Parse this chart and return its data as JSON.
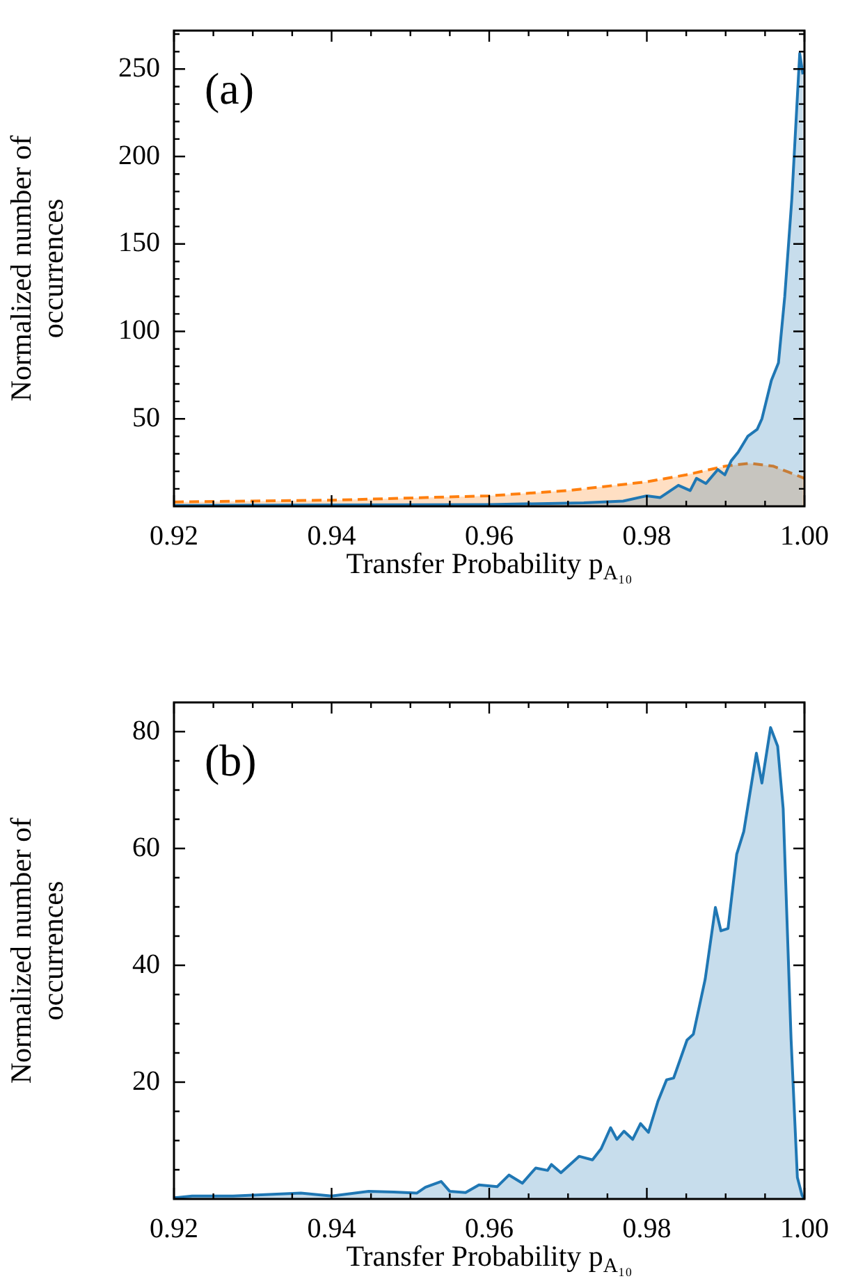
{
  "chart_data": [
    {
      "type": "area",
      "xlabel": "Transfer Probability p$_{A₁₀}$",
      "ylabel": "Normalized number of occurrences",
      "annotations": [
        "(a)"
      ],
      "xlim": [
        0.92,
        1.0
      ],
      "xticks": [
        0.92,
        {
          "value": 0.925,
          "label": null
        },
        {
          "value": 0.93,
          "label": null
        },
        {
          "value": 0.935,
          "label": null
        },
        0.94,
        {
          "value": 0.945,
          "label": null
        },
        {
          "value": 0.95,
          "label": null
        },
        {
          "value": 0.955,
          "label": null
        },
        0.96,
        {
          "value": 0.965,
          "label": null
        },
        {
          "value": 0.97,
          "label": null
        },
        {
          "value": 0.975,
          "label": null
        },
        0.98,
        {
          "value": 0.985,
          "label": null
        },
        {
          "value": 0.99,
          "label": null
        },
        {
          "value": 0.995,
          "label": null
        },
        {
          "value": 1.0,
          "label": "1.00"
        }
      ],
      "ylim": [
        0,
        272
      ],
      "yticks": [
        {
          "value": 10,
          "label": null
        },
        {
          "value": 20,
          "label": null
        },
        {
          "value": 30,
          "label": null
        },
        {
          "value": 40,
          "label": null
        },
        50,
        {
          "value": 60,
          "label": null
        },
        {
          "value": 70,
          "label": null
        },
        {
          "value": 80,
          "label": null
        },
        {
          "value": 90,
          "label": null
        },
        100,
        {
          "value": 110,
          "label": null
        },
        {
          "value": 120,
          "label": null
        },
        {
          "value": 130,
          "label": null
        },
        {
          "value": 140,
          "label": null
        },
        150,
        {
          "value": 160,
          "label": null
        },
        {
          "value": 170,
          "label": null
        },
        {
          "value": 180,
          "label": null
        },
        {
          "value": 190,
          "label": null
        },
        200,
        {
          "value": 210,
          "label": null
        },
        {
          "value": 220,
          "label": null
        },
        {
          "value": 230,
          "label": null
        },
        {
          "value": 240,
          "label": null
        },
        250,
        {
          "value": 260,
          "label": null
        },
        {
          "value": 270,
          "label": null
        }
      ],
      "series": [
        {
          "color": "#1f77b4",
          "x": [
            0.92,
            0.96,
            0.972,
            0.977,
            0.98,
            0.9817,
            0.984,
            0.9855,
            0.9863,
            0.9875,
            0.989,
            0.9899,
            0.9907,
            0.9916,
            0.9928,
            0.994,
            0.9946,
            0.9958,
            0.9967,
            0.9975,
            0.9984,
            0.999,
            0.9994,
            0.9998
          ],
          "values": [
            0.5,
            1,
            2,
            3,
            6,
            5,
            12,
            9,
            16,
            13,
            21,
            18,
            26,
            31,
            40,
            44,
            50,
            72,
            82,
            120,
            176,
            226,
            259,
            247
          ]
        },
        {
          "color": "#ff7f0e",
          "line_style": "dashed",
          "x": [
            0.92,
            0.94,
            0.96,
            0.97,
            0.98,
            0.985,
            0.99,
            0.993,
            0.996,
            0.998,
            1.0
          ],
          "values": [
            2.5,
            3.5,
            6,
            9,
            14,
            18,
            23,
            24.6,
            23,
            19.5,
            16
          ]
        }
      ]
    },
    {
      "type": "area",
      "xlabel": "Transfer Probability p$_{A₁₀}$",
      "ylabel": "Normalized number of occurrences",
      "annotations": [
        "(b)"
      ],
      "xlim": [
        0.92,
        1.0
      ],
      "xticks": [
        0.92,
        {
          "value": 0.925,
          "label": null
        },
        {
          "value": 0.93,
          "label": null
        },
        {
          "value": 0.935,
          "label": null
        },
        0.94,
        {
          "value": 0.945,
          "label": null
        },
        {
          "value": 0.95,
          "label": null
        },
        {
          "value": 0.955,
          "label": null
        },
        0.96,
        {
          "value": 0.965,
          "label": null
        },
        {
          "value": 0.97,
          "label": null
        },
        {
          "value": 0.975,
          "label": null
        },
        0.98,
        {
          "value": 0.985,
          "label": null
        },
        {
          "value": 0.99,
          "label": null
        },
        {
          "value": 0.995,
          "label": null
        },
        {
          "value": 1.0,
          "label": "1.00"
        }
      ],
      "ylim": [
        0,
        85
      ],
      "yticks": [
        {
          "value": 5,
          "label": null
        },
        {
          "value": 10,
          "label": null
        },
        {
          "value": 15,
          "label": null
        },
        20,
        {
          "value": 25,
          "label": null
        },
        {
          "value": 30,
          "label": null
        },
        {
          "value": 35,
          "label": null
        },
        40,
        {
          "value": 45,
          "label": null
        },
        {
          "value": 50,
          "label": null
        },
        {
          "value": 55,
          "label": null
        },
        60,
        {
          "value": 65,
          "label": null
        },
        {
          "value": 70,
          "label": null
        },
        {
          "value": 75,
          "label": null
        },
        80
      ],
      "series": [
        {
          "color": "#1f77b4",
          "x": [
            0.92,
            0.9223,
            0.9275,
            0.9361,
            0.94,
            0.9447,
            0.9479,
            0.9508,
            0.9519,
            0.9539,
            0.955,
            0.957,
            0.9587,
            0.961,
            0.9625,
            0.9642,
            0.9659,
            0.9674,
            0.9679,
            0.9691,
            0.9714,
            0.9731,
            0.9742,
            0.9754,
            0.9762,
            0.9771,
            0.9782,
            0.9792,
            0.9802,
            0.9814,
            0.9825,
            0.9834,
            0.9851,
            0.9859,
            0.9874,
            0.9887,
            0.9894,
            0.9903,
            0.9914,
            0.9923,
            0.9931,
            0.9939,
            0.9946,
            0.9957,
            0.9966,
            0.9973,
            0.9983,
            0.9991,
            0.9997,
            1.0
          ],
          "values": [
            0.2,
            0.5,
            0.5,
            1,
            0.5,
            1.3,
            1.2,
            1,
            2,
            3,
            1.3,
            1.1,
            2.4,
            2.1,
            4.1,
            2.7,
            5.3,
            4.9,
            5.9,
            4.5,
            7.3,
            6.7,
            8.6,
            12.2,
            10.2,
            11.6,
            10.2,
            12.9,
            11.4,
            16.7,
            20.4,
            20.7,
            27.2,
            28.2,
            37.6,
            49.9,
            45.9,
            46.3,
            59,
            62.9,
            69.6,
            76.3,
            71.2,
            80.7,
            77.5,
            66.8,
            27.4,
            3.7,
            0.6,
            0
          ]
        }
      ]
    }
  ]
}
